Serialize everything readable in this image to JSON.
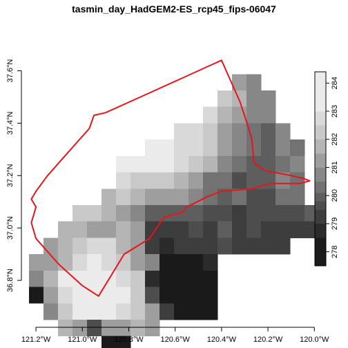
{
  "title": "tasmin_day_HadGEM2-ES_rcp45_fips-06047",
  "x_axis": {
    "range": [
      -121.23,
      -119.98
    ],
    "ticks": [
      {
        "value": -121.2,
        "label": "121.2°W"
      },
      {
        "value": -121.0,
        "label": "121.0°W"
      },
      {
        "value": -120.8,
        "label": "120.8°W"
      },
      {
        "value": -120.6,
        "label": "120.6°W"
      },
      {
        "value": -120.4,
        "label": "120.4°W"
      },
      {
        "value": -120.2,
        "label": "120.2°W"
      },
      {
        "value": -120.0,
        "label": "120.0°W"
      }
    ]
  },
  "y_axis": {
    "range": [
      36.65,
      37.77
    ],
    "ticks": [
      {
        "value": 36.8,
        "label": "36.8°N"
      },
      {
        "value": 37.0,
        "label": "37.0°N"
      },
      {
        "value": 37.2,
        "label": "37.2°N"
      },
      {
        "value": 37.4,
        "label": "37.4°N"
      },
      {
        "value": 37.6,
        "label": "37.6°N"
      }
    ]
  },
  "colorbar": {
    "min": 277.5,
    "max": 284.4,
    "tick_values": [
      278,
      279,
      280,
      281,
      282,
      283,
      284
    ],
    "tick_labels": [
      "278",
      "279",
      "280",
      "281",
      "282",
      "283",
      "284"
    ],
    "bands": [
      {
        "from": 277.5,
        "to": 278.5,
        "color": "#1a1a1a"
      },
      {
        "from": 278.5,
        "to": 279.0,
        "color": "#2b2b2b"
      },
      {
        "from": 279.0,
        "to": 279.5,
        "color": "#3d3d3d"
      },
      {
        "from": 279.5,
        "to": 279.8,
        "color": "#4d4d4d"
      },
      {
        "from": 279.8,
        "to": 280.1,
        "color": "#5e5e5e"
      },
      {
        "from": 280.1,
        "to": 280.5,
        "color": "#727272"
      },
      {
        "from": 280.5,
        "to": 281.0,
        "color": "#878787"
      },
      {
        "from": 281.0,
        "to": 281.5,
        "color": "#9e9e9e"
      },
      {
        "from": 281.5,
        "to": 282.0,
        "color": "#b5b5b5"
      },
      {
        "from": 282.0,
        "to": 282.5,
        "color": "#c9c9c9"
      },
      {
        "from": 282.5,
        "to": 283.0,
        "color": "#d9d9d9"
      },
      {
        "from": 283.0,
        "to": 284.4,
        "color": "#ebebeb"
      }
    ]
  },
  "grid": {
    "lon0": -121.23,
    "lat_top": 37.65,
    "dlon": 0.0625,
    "dlat": 0.0625,
    "rows": [
      [
        null,
        null,
        null,
        null,
        null,
        null,
        null,
        null,
        null,
        null,
        null,
        null,
        null,
        null,
        null,
        null,
        null,
        null,
        null,
        null
      ],
      [
        null,
        null,
        null,
        null,
        null,
        null,
        null,
        null,
        null,
        null,
        null,
        null,
        null,
        null,
        281.0,
        280.6,
        null,
        null,
        null,
        null
      ],
      [
        null,
        null,
        null,
        null,
        null,
        null,
        null,
        null,
        null,
        null,
        null,
        null,
        null,
        282.2,
        281.5,
        280.8,
        280.7,
        null,
        null,
        null
      ],
      [
        null,
        null,
        null,
        null,
        null,
        null,
        null,
        null,
        null,
        null,
        null,
        null,
        282.6,
        281.8,
        281.0,
        280.7,
        280.6,
        null,
        null,
        null
      ],
      [
        null,
        null,
        null,
        null,
        null,
        null,
        null,
        null,
        null,
        null,
        282.8,
        282.6,
        282.4,
        281.2,
        280.7,
        280.2,
        279.8,
        280.6,
        null,
        null
      ],
      [
        null,
        null,
        null,
        null,
        null,
        null,
        null,
        null,
        283.0,
        283.0,
        282.8,
        282.6,
        282.2,
        281.0,
        280.8,
        280.4,
        279.9,
        280.7,
        280.4,
        null
      ],
      [
        null,
        null,
        null,
        null,
        null,
        null,
        283.4,
        283.6,
        283.2,
        283.0,
        282.6,
        282.2,
        281.6,
        280.8,
        280.4,
        280.0,
        279.8,
        280.2,
        280.6,
        null
      ],
      [
        null,
        null,
        null,
        null,
        null,
        null,
        282.5,
        282.2,
        282.3,
        282.2,
        281.8,
        281.2,
        280.4,
        280.2,
        279.7,
        280.0,
        279.9,
        280.5,
        280.4,
        null
      ],
      [
        null,
        null,
        null,
        null,
        null,
        281.8,
        282.1,
        281.6,
        281.3,
        281.2,
        281.0,
        280.6,
        280.1,
        279.8,
        280.1,
        279.6,
        279.6,
        280.1,
        280.3,
        null
      ],
      [
        null,
        null,
        null,
        282.1,
        282.0,
        281.6,
        281.2,
        280.8,
        280.0,
        279.8,
        279.8,
        280.0,
        279.6,
        279.7,
        279.4,
        279.7,
        279.5,
        279.6,
        279.7,
        279.8
      ],
      [
        null,
        null,
        281.5,
        281.8,
        281.3,
        281.4,
        281.8,
        281.0,
        279.4,
        279.3,
        279.2,
        279.5,
        279.4,
        279.8,
        279.3,
        279.5,
        279.4,
        279.3,
        279.1,
        279.3
      ],
      [
        null,
        281.2,
        281.7,
        282.4,
        282.6,
        282.6,
        281.8,
        281.2,
        279.0,
        278.9,
        279.0,
        279.2,
        279.4,
        279.5,
        279.0,
        279.2,
        279.1,
        279.3,
        null,
        null
      ],
      [
        281.0,
        281.3,
        281.9,
        282.8,
        283.0,
        282.7,
        282.3,
        281.4,
        280.8,
        278.4,
        278.3,
        278.2,
        278.6,
        null,
        null,
        null,
        null,
        null,
        null,
        null
      ],
      [
        280.5,
        281.6,
        283.1,
        283.5,
        283.4,
        283.2,
        282.6,
        282.0,
        278.7,
        278.2,
        278.1,
        278.2,
        278.3,
        null,
        null,
        null,
        null,
        null,
        null,
        null
      ],
      [
        278.2,
        281.4,
        282.7,
        283.4,
        283.6,
        283.5,
        283.0,
        282.4,
        279.6,
        278.3,
        278.2,
        278.2,
        278.4,
        null,
        null,
        null,
        null,
        null,
        null,
        null
      ],
      [
        null,
        280.8,
        282.1,
        283.0,
        283.3,
        283.2,
        282.8,
        282.3,
        281.0,
        279.4,
        278.4,
        278.3,
        278.2,
        null,
        null,
        null,
        null,
        null,
        null,
        null
      ],
      [
        null,
        null,
        281.8,
        281.2,
        279.7,
        281.2,
        281.3,
        281.5,
        281.2,
        null,
        null,
        null,
        null,
        null,
        null,
        null,
        null,
        null,
        null,
        null
      ],
      [
        null,
        null,
        null,
        null,
        null,
        278.0,
        278.2,
        null,
        null,
        null,
        null,
        null,
        null,
        null,
        null,
        null,
        null,
        null,
        null,
        null
      ]
    ]
  },
  "boundary": {
    "color": "#e8141a",
    "coordinates": [
      [
        -120.4,
        37.64
      ],
      [
        -120.37,
        37.58
      ],
      [
        -120.32,
        37.48
      ],
      [
        -120.29,
        37.4
      ],
      [
        -120.27,
        37.34
      ],
      [
        -120.26,
        37.25
      ],
      [
        -120.22,
        37.22
      ],
      [
        -120.1,
        37.2
      ],
      [
        -120.05,
        37.19
      ],
      [
        -120.02,
        37.18
      ],
      [
        -120.06,
        37.17
      ],
      [
        -120.19,
        37.17
      ],
      [
        -120.27,
        37.15
      ],
      [
        -120.4,
        37.14
      ],
      [
        -120.46,
        37.12
      ],
      [
        -120.55,
        37.08
      ],
      [
        -120.57,
        37.06
      ],
      [
        -120.65,
        37.04
      ],
      [
        -120.71,
        36.96
      ],
      [
        -120.82,
        36.9
      ],
      [
        -120.93,
        36.74
      ],
      [
        -121.0,
        36.78
      ],
      [
        -121.1,
        36.86
      ],
      [
        -121.2,
        36.96
      ],
      [
        -121.22,
        37.02
      ],
      [
        -121.2,
        37.08
      ],
      [
        -121.22,
        37.11
      ],
      [
        -121.2,
        37.14
      ],
      [
        -121.15,
        37.2
      ],
      [
        -121.05,
        37.3
      ],
      [
        -120.97,
        37.38
      ],
      [
        -120.95,
        37.43
      ],
      [
        -120.9,
        37.44
      ],
      [
        -120.75,
        37.5
      ],
      [
        -120.6,
        37.56
      ],
      [
        -120.55,
        37.58
      ],
      [
        -120.45,
        37.62
      ],
      [
        -120.4,
        37.64
      ]
    ]
  }
}
